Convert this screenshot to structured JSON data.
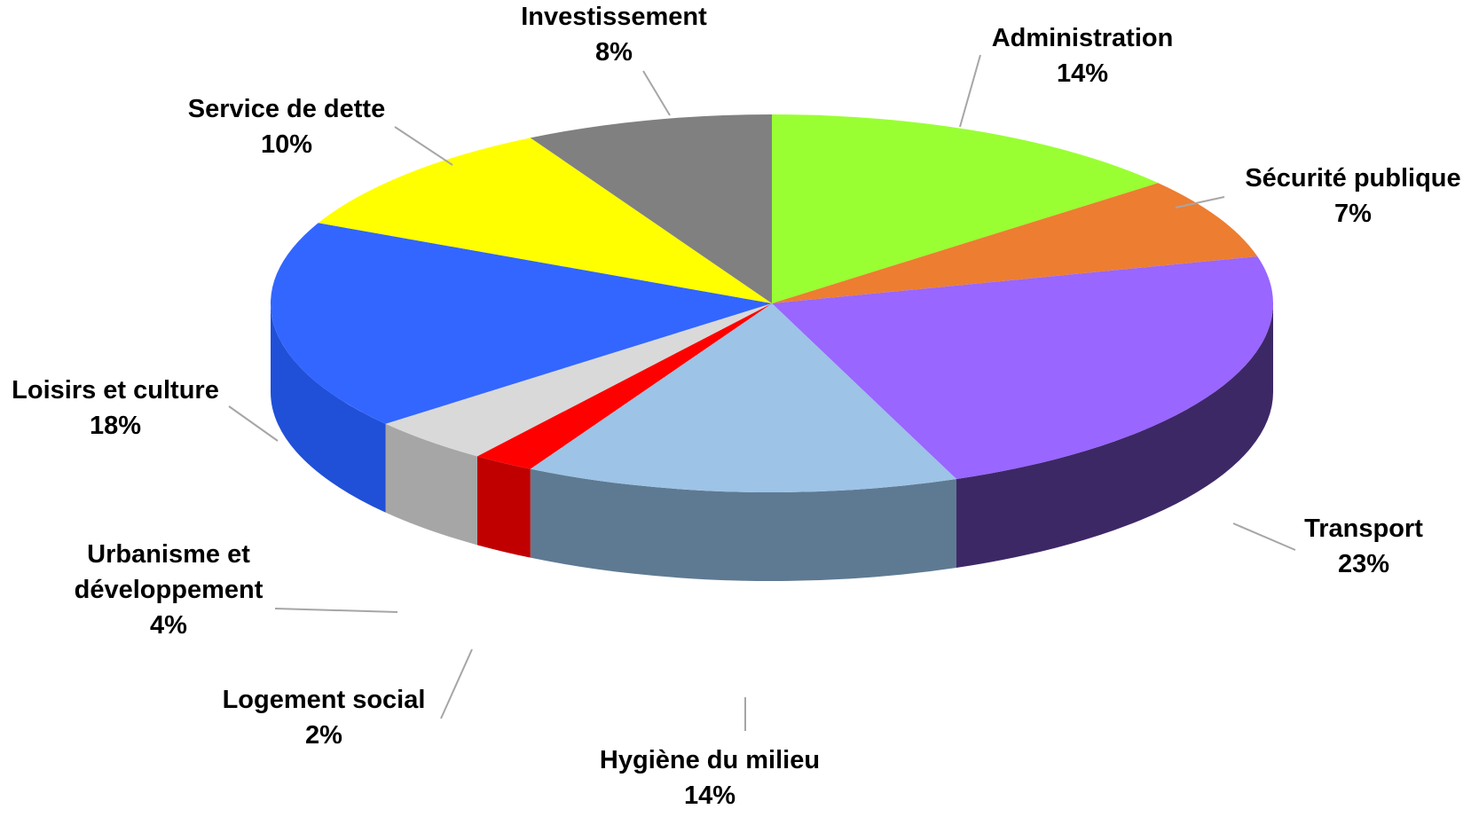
{
  "chart_data": {
    "type": "pie",
    "title": "",
    "style": "3d",
    "slices": [
      {
        "label": "Administration",
        "value": 14,
        "value_label": "14%",
        "color": "#99FF33",
        "side_color": "#5C9A1F"
      },
      {
        "label": "Sécurité publique",
        "value": 7,
        "value_label": "7%",
        "color": "#ED7D31",
        "side_color": "#8E4B1D"
      },
      {
        "label": "Transport",
        "value": 23,
        "value_label": "23%",
        "color": "#9966FF",
        "side_color": "#3D2866"
      },
      {
        "label": "Hygiène du milieu",
        "value": 14,
        "value_label": "14%",
        "color": "#9DC3E6",
        "side_color": "#5E7A92"
      },
      {
        "label": "Logement social",
        "value": 2,
        "value_label": "2%",
        "color": "#FF0000",
        "side_color": "#C00000"
      },
      {
        "label": "Urbanisme et développement",
        "value": 4,
        "value_label": "4%",
        "color": "#D9D9D9",
        "side_color": "#A6A6A6"
      },
      {
        "label": "Loisirs et culture",
        "value": 18,
        "value_label": "18%",
        "color": "#3366FF",
        "side_color": "#2050D8"
      },
      {
        "label": "Service de dette",
        "value": 10,
        "value_label": "10%",
        "color": "#FFFF00",
        "side_color": "#B3B300"
      },
      {
        "label": "Investissement",
        "value": 8,
        "value_label": "8%",
        "color": "#808080",
        "side_color": "#555555"
      }
    ]
  }
}
